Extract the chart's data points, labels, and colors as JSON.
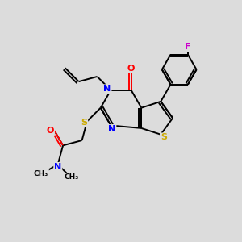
{
  "bg_color": "#dcdcdc",
  "bond_color": "#000000",
  "atom_colors": {
    "N": "#0000ff",
    "O": "#ff0000",
    "S": "#ccaa00",
    "F": "#cc00cc",
    "C": "#000000"
  },
  "figsize": [
    3.0,
    3.0
  ],
  "dpi": 100
}
